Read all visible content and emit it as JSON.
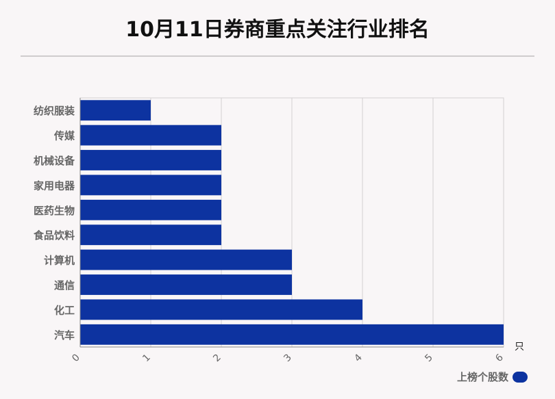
{
  "title": "10月11日券商重点关注行业排名",
  "chart_data": {
    "type": "bar",
    "orientation": "horizontal",
    "title": "10月11日券商重点关注行业排名",
    "categories": [
      "纺织服装",
      "传媒",
      "机械设备",
      "家用电器",
      "医药生物",
      "食品饮料",
      "计算机",
      "通信",
      "化工",
      "汽车"
    ],
    "series": [
      {
        "name": "上榜个股数",
        "values": [
          1,
          2,
          2,
          2,
          2,
          2,
          3,
          3,
          4,
          6
        ]
      }
    ],
    "xlim": [
      0,
      6
    ],
    "xticks": [
      "0",
      "1",
      "2",
      "3",
      "4",
      "5",
      "6"
    ],
    "unit": "只",
    "grid": true,
    "legend": "bottom-right",
    "bar_color": "#0d33a0"
  },
  "legend": {
    "label": "上榜个股数"
  }
}
